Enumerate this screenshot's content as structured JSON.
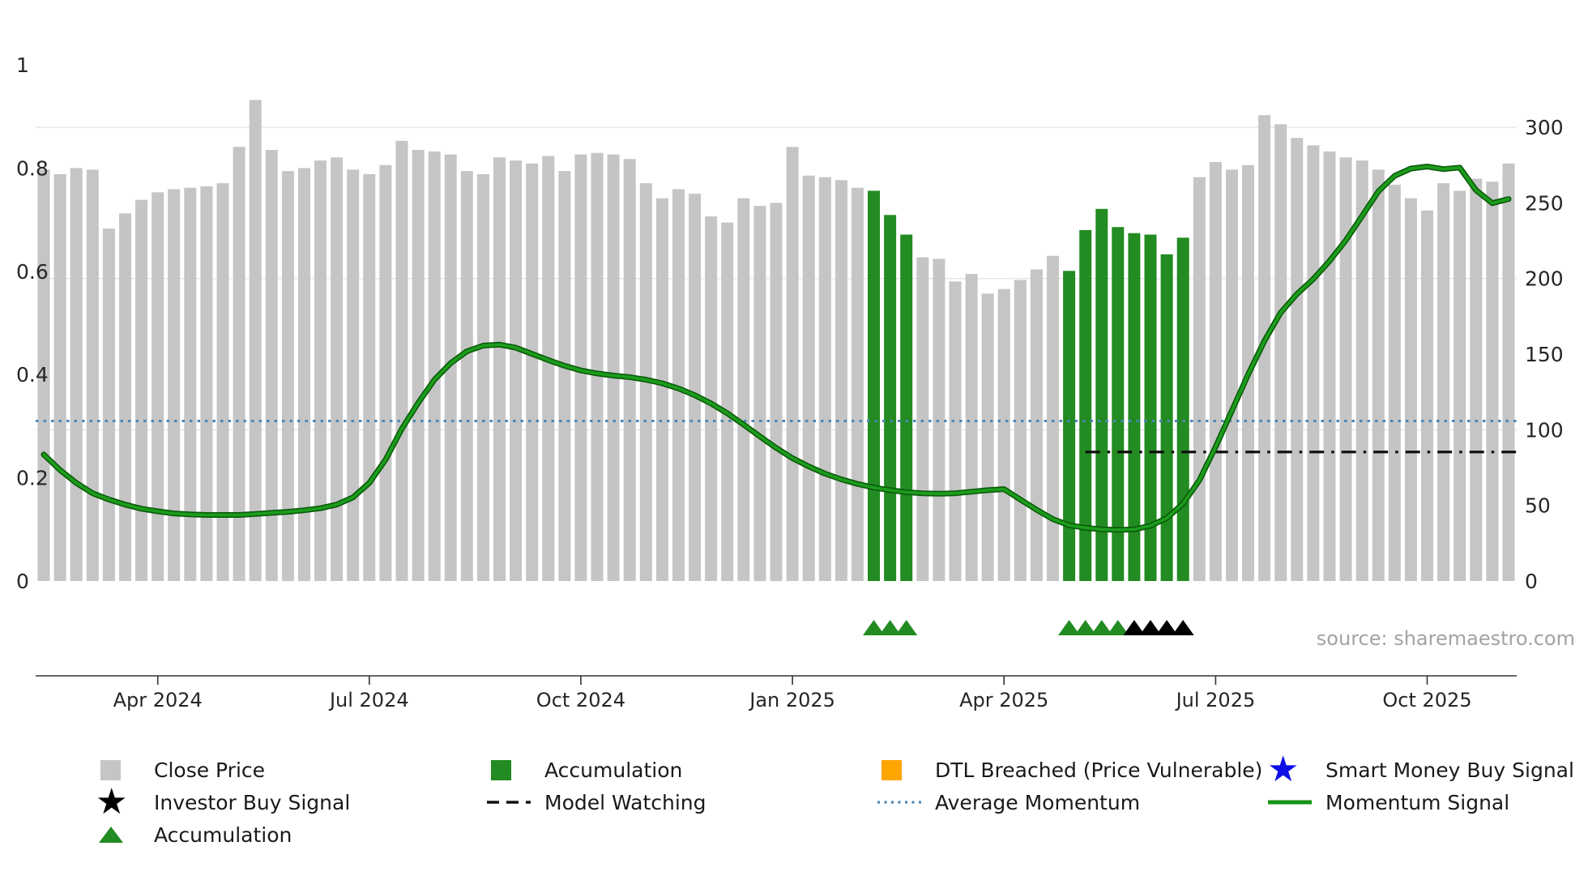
{
  "chart_data": {
    "type": "bar",
    "title": "",
    "source": "source: sharemaestro.com",
    "x_ticks": [
      {
        "index": 7,
        "label": "Apr 2024"
      },
      {
        "index": 20,
        "label": "Jul 2024"
      },
      {
        "index": 33,
        "label": "Oct 2024"
      },
      {
        "index": 46,
        "label": "Jan 2025"
      },
      {
        "index": 59,
        "label": "Apr 2025"
      },
      {
        "index": 72,
        "label": "Jul 2025"
      },
      {
        "index": 85,
        "label": "Oct 2025"
      }
    ],
    "left_axis_ticks": [
      0,
      0.2,
      0.4,
      0.6,
      0.8,
      1
    ],
    "left_axis_range": [
      0,
      1
    ],
    "right_axis_ticks": [
      0,
      50,
      100,
      150,
      200,
      250,
      300
    ],
    "right_axis_range": [
      0,
      335
    ],
    "grid": "horizontal-light",
    "legend_position": "bottom",
    "series": [
      {
        "name": "Close Price",
        "type": "bar",
        "axis": "right",
        "values": [
          272,
          269,
          273,
          272,
          233,
          243,
          252,
          257,
          259,
          260,
          261,
          263,
          287,
          318,
          285,
          271,
          273,
          278,
          280,
          272,
          269,
          275,
          291,
          285,
          284,
          282,
          271,
          269,
          280,
          278,
          276,
          281,
          271,
          282,
          283,
          282,
          279,
          263,
          253,
          259,
          256,
          241,
          237,
          253,
          248,
          250,
          287,
          268,
          267,
          265,
          260,
          258,
          242,
          229,
          214,
          213,
          198,
          203,
          190,
          193,
          199,
          206,
          215,
          205,
          232,
          246,
          234,
          230,
          229,
          216,
          227,
          267,
          277,
          272,
          275,
          308,
          302,
          293,
          288,
          284,
          280,
          278,
          272,
          262,
          253,
          245,
          263,
          258,
          266,
          264,
          276
        ]
      },
      {
        "name": "Momentum Signal",
        "type": "line",
        "axis": "left",
        "values": [
          0.245,
          0.215,
          0.19,
          0.17,
          0.158,
          0.148,
          0.14,
          0.135,
          0.131,
          0.129,
          0.128,
          0.128,
          0.128,
          0.13,
          0.132,
          0.134,
          0.137,
          0.141,
          0.148,
          0.162,
          0.19,
          0.235,
          0.295,
          0.345,
          0.39,
          0.422,
          0.445,
          0.456,
          0.458,
          0.452,
          0.44,
          0.428,
          0.417,
          0.408,
          0.402,
          0.398,
          0.395,
          0.39,
          0.383,
          0.373,
          0.36,
          0.344,
          0.325,
          0.303,
          0.28,
          0.258,
          0.238,
          0.222,
          0.208,
          0.197,
          0.188,
          0.181,
          0.176,
          0.172,
          0.17,
          0.169,
          0.17,
          0.173,
          0.176,
          0.178,
          0.158,
          0.138,
          0.12,
          0.108,
          0.103,
          0.1,
          0.099,
          0.1,
          0.107,
          0.122,
          0.15,
          0.195,
          0.26,
          0.33,
          0.4,
          0.465,
          0.52,
          0.556,
          0.585,
          0.62,
          0.66,
          0.707,
          0.755,
          0.785,
          0.799,
          0.803,
          0.798,
          0.801,
          0.757,
          0.732,
          0.74
        ]
      }
    ],
    "green_bar_indices": [
      51,
      52,
      53,
      63,
      64,
      65,
      66,
      67,
      68,
      69,
      70
    ],
    "average_momentum": 0.31,
    "model_watching": {
      "start_index": 64,
      "value": 0.25
    },
    "accumulation_marker_indices": [
      51,
      52,
      53,
      63,
      64,
      65,
      66
    ],
    "investor_buy_marker_indices": [
      67,
      68,
      69,
      70
    ],
    "colors": {
      "bar": "#c5c5c5",
      "accumulation": "#228B22",
      "momentum": "#1c9c1c",
      "momentum_edge": "#0a5a0a",
      "average_momentum": "#4d87b5",
      "model_watching": "#111111",
      "dtl_breached": "#FFA500",
      "smart_money": "#0f0fe8",
      "investor": "#000000",
      "grid": "#e5e5e5",
      "axis_text": "#262626",
      "source_text": "#a3a3a3"
    }
  },
  "legend": {
    "items": [
      {
        "key": "close-price",
        "label": "Close Price",
        "marker": "square",
        "color": "#c5c5c5"
      },
      {
        "key": "accumulation-bar",
        "label": "Accumulation",
        "marker": "square",
        "color": "#228B22"
      },
      {
        "key": "dtl-breached",
        "label": "DTL Breached (Price Vulnerable)",
        "marker": "square",
        "color": "#FFA500"
      },
      {
        "key": "smart-money-buy-signal",
        "label": "Smart Money Buy Signal",
        "marker": "star",
        "color": "#0f0fe8"
      },
      {
        "key": "investor-buy-signal",
        "label": "Investor Buy Signal",
        "marker": "star",
        "color": "#000000"
      },
      {
        "key": "model-watching",
        "label": "Model Watching",
        "marker": "dash",
        "color": "#111111"
      },
      {
        "key": "average-momentum",
        "label": "Average Momentum",
        "marker": "dotted",
        "color": "#4d87b5"
      },
      {
        "key": "momentum-signal",
        "label": "Momentum Signal",
        "marker": "line",
        "color": "#149414"
      },
      {
        "key": "accumulation-marker",
        "label": "Accumulation",
        "marker": "triangle",
        "color": "#228B22"
      }
    ]
  }
}
